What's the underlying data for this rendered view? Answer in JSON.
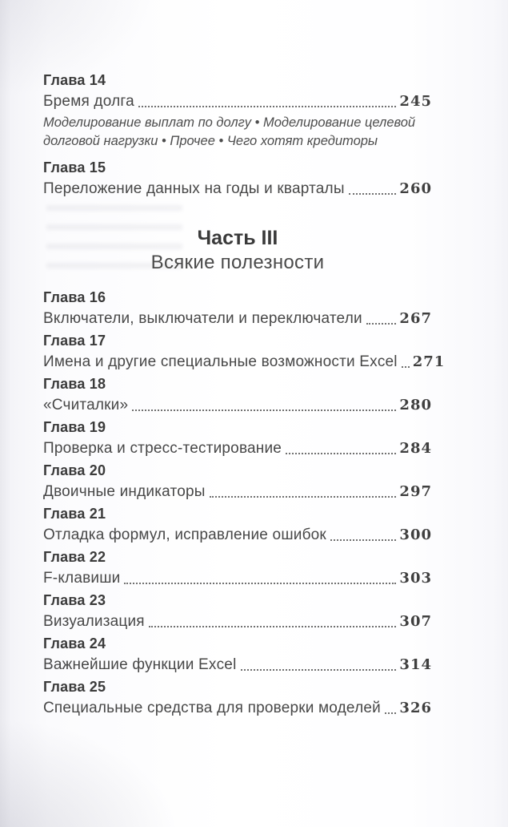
{
  "colors": {
    "ink": "#3d3d3d",
    "paper": "#ffffff"
  },
  "toc": {
    "part": {
      "label": "Часть III",
      "title": "Всякие полезности"
    },
    "entries": [
      {
        "chapter": "Глава 14",
        "title": "Бремя долга",
        "page": "245",
        "subtitle": "Моделирование выплат по долгу • Моделирование целевой долговой нагрузки • Прочее • Чего хотят кредиторы"
      },
      {
        "chapter": "Глава 15",
        "title": "Переложение данных на годы и кварталы",
        "page": "260"
      },
      {
        "chapter": "Глава 16",
        "title": "Включатели, выключатели и переключатели",
        "page": "267"
      },
      {
        "chapter": "Глава 17",
        "title": "Имена и другие специальные возможности Excel",
        "page": "271"
      },
      {
        "chapter": "Глава 18",
        "title": "«Считалки»",
        "page": "280"
      },
      {
        "chapter": "Глава 19",
        "title": "Проверка и стресс-тестирование",
        "page": "284"
      },
      {
        "chapter": "Глава 20",
        "title": "Двоичные индикаторы",
        "page": "297"
      },
      {
        "chapter": "Глава 21",
        "title": "Отладка формул, исправление ошибок",
        "page": "300"
      },
      {
        "chapter": "Глава 22",
        "title": "F-клавиши",
        "page": "303"
      },
      {
        "chapter": "Глава 23",
        "title": "Визуализация",
        "page": "307"
      },
      {
        "chapter": "Глава 24",
        "title": "Важнейшие функции Excel",
        "page": "314"
      },
      {
        "chapter": "Глава 25",
        "title": "Специальные средства для проверки моделей",
        "page": "326"
      }
    ]
  }
}
